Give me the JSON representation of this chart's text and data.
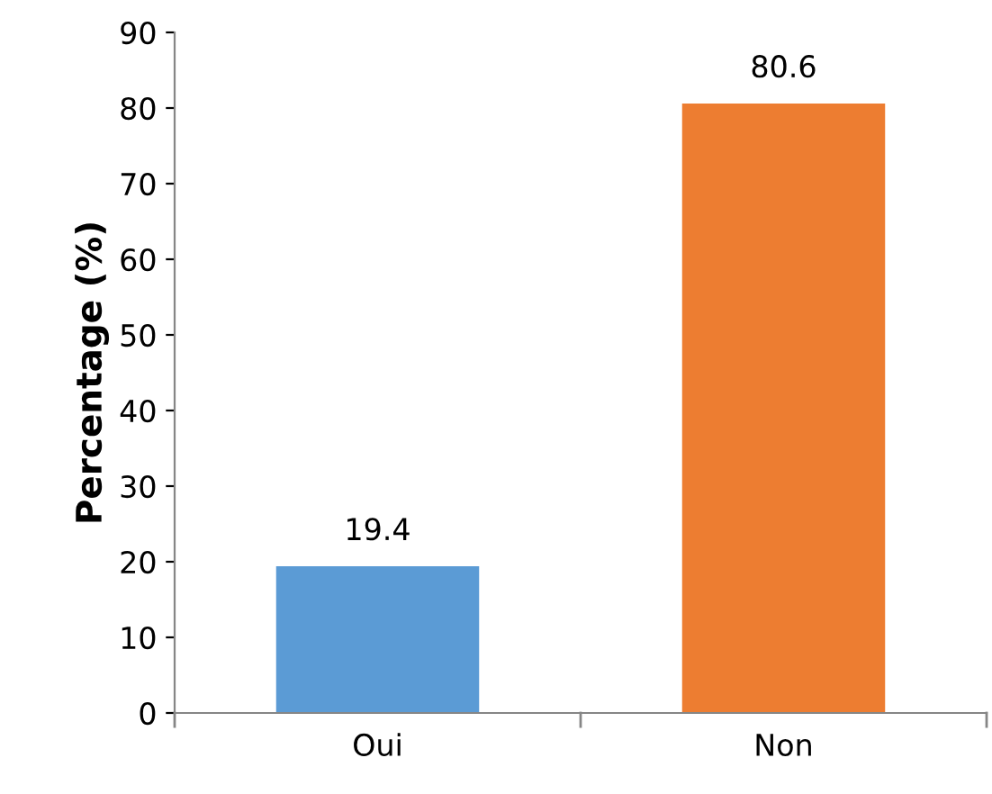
{
  "chart_data": {
    "type": "bar",
    "ylabel": "Percentage (%)",
    "categories": [
      "Oui",
      "Non"
    ],
    "values": [
      19.4,
      80.6
    ],
    "colors": [
      "#5b9bd5",
      "#ed7d31"
    ],
    "ylim": [
      0,
      90
    ],
    "yticks": [
      0,
      10,
      20,
      30,
      40,
      50,
      60,
      70,
      80,
      90
    ],
    "data_labels": true,
    "grid": false,
    "legend": false
  }
}
